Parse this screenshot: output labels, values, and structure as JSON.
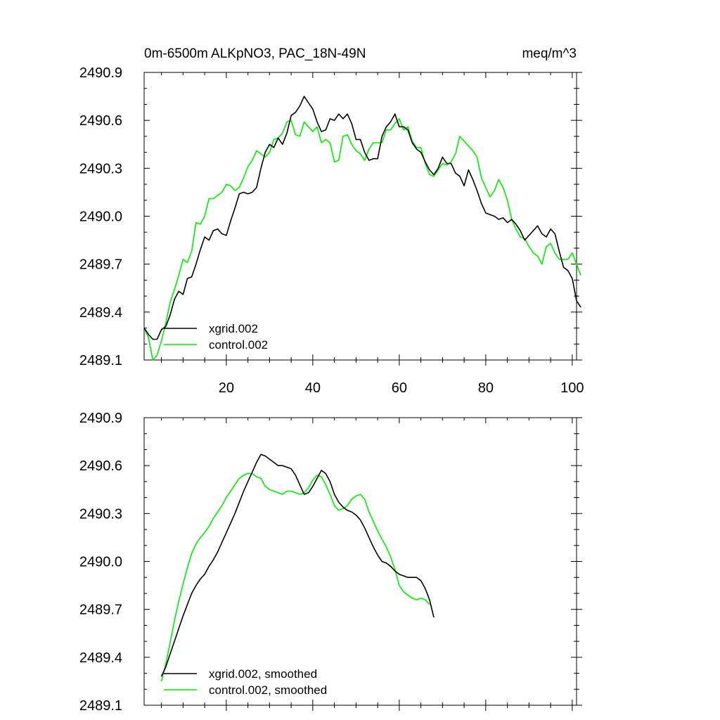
{
  "colors": {
    "series_a": "#000000",
    "series_b": "#00ee00",
    "background": "#ffffff",
    "axes": "#000000"
  },
  "chart_data": [
    {
      "type": "line",
      "title": "0m-6500m ALKpNO3, PAC_18N-49N",
      "units": "meq/m^3",
      "xlabel": "",
      "ylabel": "",
      "xlim": [
        1,
        101
      ],
      "ylim": [
        2489.1,
        2490.9
      ],
      "yticks": [
        "2489.1",
        "2489.4",
        "2489.7",
        "2490.0",
        "2490.3",
        "2490.6",
        "2490.9"
      ],
      "xticks": [
        "20",
        "40",
        "60",
        "80",
        "100"
      ],
      "x_start": 1,
      "legend_position": "bottom-left",
      "series": [
        {
          "name": "xgrid.002",
          "color": "#000000",
          "values": [
            2489.3,
            2489.26,
            2489.23,
            2489.23,
            2489.29,
            2489.31,
            2489.38,
            2489.48,
            2489.53,
            2489.51,
            2489.61,
            2489.62,
            2489.7,
            2489.79,
            2489.87,
            2489.85,
            2489.91,
            2489.92,
            2489.89,
            2489.88,
            2489.97,
            2490.05,
            2490.14,
            2490.15,
            2490.14,
            2490.15,
            2490.18,
            2490.3,
            2490.4,
            2490.45,
            2490.43,
            2490.49,
            2490.45,
            2490.52,
            2490.63,
            2490.65,
            2490.69,
            2490.75,
            2490.71,
            2490.67,
            2490.59,
            2490.53,
            2490.54,
            2490.61,
            2490.6,
            2490.64,
            2490.61,
            2490.64,
            2490.58,
            2490.48,
            2490.48,
            2490.4,
            2490.35,
            2490.36,
            2490.36,
            2490.5,
            2490.56,
            2490.59,
            2490.64,
            2490.56,
            2490.56,
            2490.54,
            2490.46,
            2490.42,
            2490.4,
            2490.34,
            2490.29,
            2490.26,
            2490.3,
            2490.37,
            2490.33,
            2490.33,
            2490.27,
            2490.25,
            2490.19,
            2490.29,
            2490.23,
            2490.16,
            2490.08,
            2490.02,
            2490.01,
            2490.0,
            2489.98,
            2489.99,
            2489.96,
            2489.98,
            2489.95,
            2489.91,
            2489.85,
            2489.88,
            2489.91,
            2489.94,
            2489.89,
            2489.87,
            2489.92,
            2489.89,
            2489.78,
            2489.68,
            2489.66,
            2489.61,
            2489.47,
            2489.43
          ]
        },
        {
          "name": "control.002",
          "color": "#00ee00",
          "values": [
            2489.3,
            2489.24,
            2489.1,
            2489.13,
            2489.22,
            2489.33,
            2489.46,
            2489.54,
            2489.63,
            2489.73,
            2489.71,
            2489.78,
            2489.96,
            2489.95,
            2490.0,
            2490.11,
            2490.11,
            2490.13,
            2490.15,
            2490.2,
            2490.19,
            2490.16,
            2490.18,
            2490.24,
            2490.31,
            2490.35,
            2490.41,
            2490.39,
            2490.37,
            2490.4,
            2490.48,
            2490.49,
            2490.52,
            2490.59,
            2490.6,
            2490.51,
            2490.5,
            2490.59,
            2490.56,
            2490.53,
            2490.56,
            2490.46,
            2490.48,
            2490.46,
            2490.34,
            2490.35,
            2490.5,
            2490.51,
            2490.45,
            2490.41,
            2490.39,
            2490.35,
            2490.42,
            2490.46,
            2490.46,
            2490.46,
            2490.54,
            2490.54,
            2490.58,
            2490.61,
            2490.54,
            2490.56,
            2490.47,
            2490.43,
            2490.43,
            2490.33,
            2490.26,
            2490.25,
            2490.29,
            2490.33,
            2490.32,
            2490.34,
            2490.39,
            2490.5,
            2490.47,
            2490.44,
            2490.41,
            2490.37,
            2490.24,
            2490.18,
            2490.12,
            2490.16,
            2490.23,
            2490.18,
            2490.1,
            2489.98,
            2489.92,
            2489.87,
            2489.86,
            2489.81,
            2489.77,
            2489.75,
            2489.7,
            2489.81,
            2489.83,
            2489.77,
            2489.73,
            2489.73,
            2489.73,
            2489.77,
            2489.7,
            2489.63
          ]
        }
      ]
    },
    {
      "type": "line",
      "title": "",
      "xlabel": "",
      "ylabel": "",
      "xlim": [
        1,
        101
      ],
      "ylim": [
        2489.1,
        2490.9
      ],
      "yticks": [
        "2489.1",
        "2489.4",
        "2489.7",
        "2490.0",
        "2490.3",
        "2490.6",
        "2490.9"
      ],
      "xticks": [],
      "x_start": 5,
      "legend_position": "bottom-left",
      "series": [
        {
          "name": "xgrid.002, smoothed",
          "color": "#000000",
          "values": [
            2489.28,
            2489.34,
            2489.42,
            2489.5,
            2489.58,
            2489.66,
            2489.73,
            2489.8,
            2489.85,
            2489.89,
            2489.92,
            2489.97,
            2490.01,
            2490.06,
            2490.12,
            2490.18,
            2490.24,
            2490.3,
            2490.37,
            2490.44,
            2490.5,
            2490.56,
            2490.62,
            2490.67,
            2490.66,
            2490.64,
            2490.62,
            2490.6,
            2490.6,
            2490.59,
            2490.58,
            2490.54,
            2490.48,
            2490.42,
            2490.43,
            2490.47,
            2490.52,
            2490.57,
            2490.55,
            2490.5,
            2490.42,
            2490.37,
            2490.34,
            2490.32,
            2490.31,
            2490.29,
            2490.26,
            2490.21,
            2490.15,
            2490.09,
            2490.04,
            2490.0,
            2489.99,
            2489.97,
            2489.94,
            2489.92,
            2489.91,
            2489.9,
            2489.9,
            2489.9,
            2489.88,
            2489.83,
            2489.76,
            2489.65
          ]
        },
        {
          "name": "control.002, smoothed",
          "color": "#00ee00",
          "values": [
            2489.25,
            2489.36,
            2489.49,
            2489.63,
            2489.75,
            2489.86,
            2489.96,
            2490.05,
            2490.11,
            2490.15,
            2490.18,
            2490.22,
            2490.27,
            2490.31,
            2490.35,
            2490.4,
            2490.44,
            2490.48,
            2490.52,
            2490.54,
            2490.55,
            2490.55,
            2490.53,
            2490.52,
            2490.47,
            2490.45,
            2490.44,
            2490.43,
            2490.42,
            2490.44,
            2490.44,
            2490.43,
            2490.42,
            2490.43,
            2490.46,
            2490.51,
            2490.54,
            2490.53,
            2490.48,
            2490.42,
            2490.35,
            2490.32,
            2490.33,
            2490.35,
            2490.39,
            2490.41,
            2490.42,
            2490.39,
            2490.31,
            2490.25,
            2490.19,
            2490.14,
            2490.09,
            2490.03,
            2489.95,
            2489.85,
            2489.81,
            2489.79,
            2489.77,
            2489.76,
            2489.77,
            2489.76,
            2489.73
          ]
        }
      ]
    }
  ]
}
